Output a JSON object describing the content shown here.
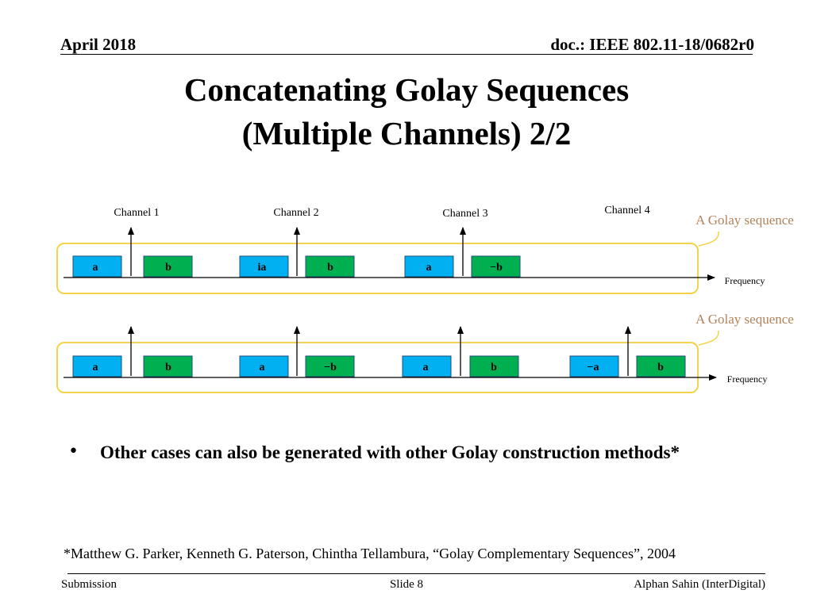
{
  "header": {
    "date": "April 2018",
    "doc_id": "doc.: IEEE 802.11-18/0682r0"
  },
  "title": {
    "line1": "Concatenating Golay Sequences",
    "line2": "(Multiple Channels) 2/2"
  },
  "diagram": {
    "channel_labels": [
      "Channel 1",
      "Channel 2",
      "Channel 3",
      "Channel 4"
    ],
    "callout_label": "A Golay sequence",
    "axis_label": "Frequency",
    "row1_blocks": [
      "a",
      "b",
      "ia",
      "b",
      "a",
      "−b"
    ],
    "row2_blocks": [
      "a",
      "b",
      "a",
      "−b",
      "a",
      "b",
      "−a",
      "b"
    ],
    "colors": {
      "a_block": "#00b0f0",
      "b_block": "#00b050",
      "highlight": "#f2d34a",
      "callout_text": "#b0835a"
    }
  },
  "bullet": {
    "text": "Other cases can also be generated with other Golay construction methods*"
  },
  "footnote": "*Matthew G. Parker, Kenneth G. Paterson, Chintha Tellambura, “Golay Complementary Sequences”, 2004",
  "footer": {
    "left": "Submission",
    "center": "Slide 8",
    "right": "Alphan Sahin (InterDigital)"
  }
}
